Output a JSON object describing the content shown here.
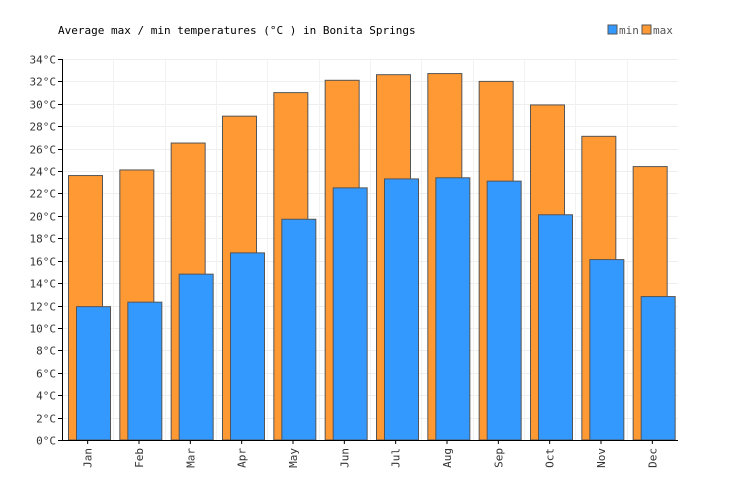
{
  "chart_data": {
    "type": "bar",
    "title": "Average max / min temperatures (°C ) in Bonita Springs",
    "categories": [
      "Jan",
      "Feb",
      "Mar",
      "Apr",
      "May",
      "Jun",
      "Jul",
      "Aug",
      "Sep",
      "Oct",
      "Nov",
      "Dec"
    ],
    "series": [
      {
        "name": "max",
        "color": "#ff9933",
        "values": [
          23.6,
          24.1,
          26.5,
          28.9,
          31.0,
          32.1,
          32.6,
          32.7,
          32.0,
          29.9,
          27.1,
          24.4
        ]
      },
      {
        "name": "min",
        "color": "#3399ff",
        "values": [
          11.9,
          12.3,
          14.8,
          16.7,
          19.7,
          22.5,
          23.3,
          23.4,
          23.1,
          20.1,
          16.1,
          12.8
        ]
      }
    ],
    "ylim": [
      0,
      34
    ],
    "ytick_step": 2,
    "ytick_suffix": "°C",
    "grid": true,
    "legend": {
      "placement": "top-right",
      "order": [
        "min",
        "max"
      ]
    }
  }
}
